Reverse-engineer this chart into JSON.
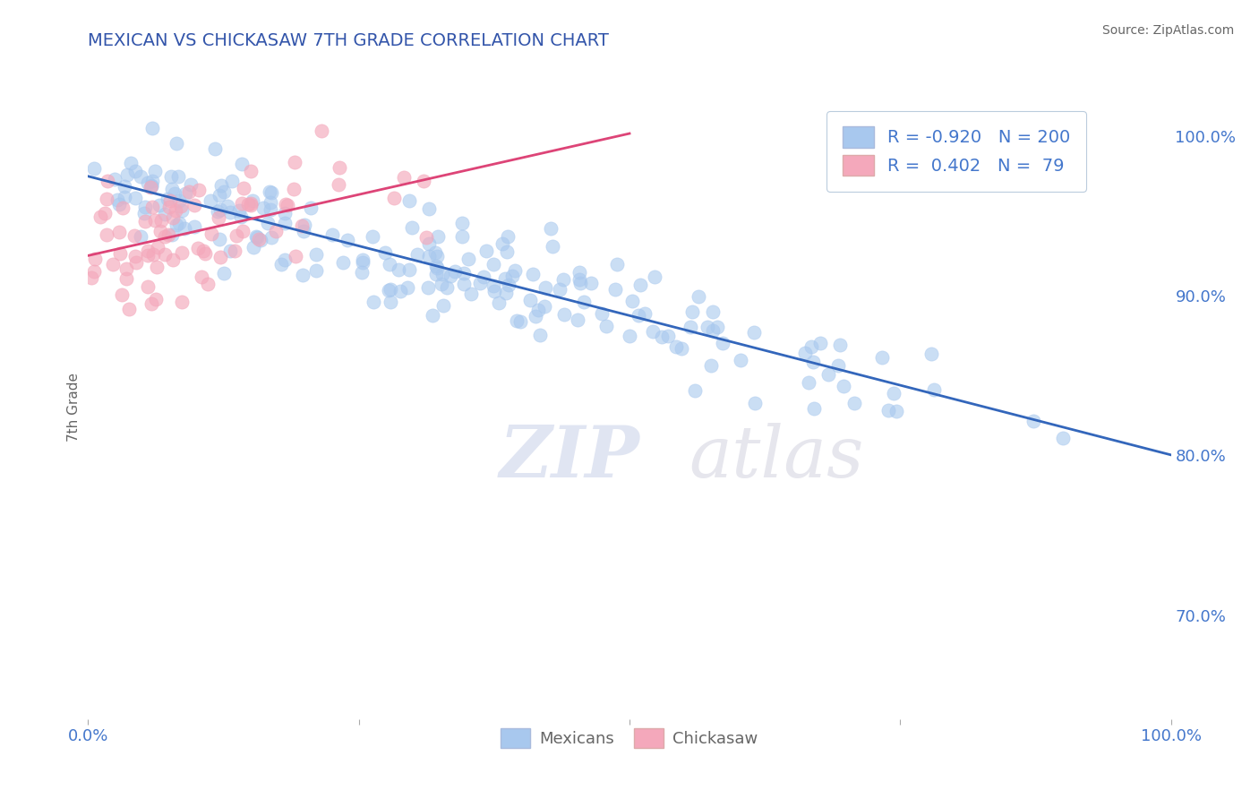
{
  "title": "MEXICAN VS CHICKASAW 7TH GRADE CORRELATION CHART",
  "source_text": "Source: ZipAtlas.com",
  "ylabel": "7th Grade",
  "xlim": [
    0.0,
    1.0
  ],
  "ylim": [
    0.635,
    1.025
  ],
  "blue_R": -0.92,
  "blue_N": 200,
  "pink_R": 0.402,
  "pink_N": 79,
  "blue_color": "#A8C8EE",
  "pink_color": "#F4A8BB",
  "blue_line_color": "#3366BB",
  "pink_line_color": "#DD4477",
  "right_yticks": [
    0.7,
    0.8,
    0.9,
    1.0
  ],
  "right_yticklabels": [
    "70.0%",
    "80.0%",
    "90.0%",
    "100.0%"
  ],
  "watermark_zip": "ZIP",
  "watermark_atlas": "atlas",
  "legend_label_blue": "Mexicans",
  "legend_label_pink": "Chickasaw",
  "grid_color": "#CCCCDD",
  "background_color": "#FFFFFF",
  "title_color": "#3355AA",
  "axis_label_color": "#666666",
  "tick_label_color": "#4477CC",
  "blue_scatter_seed": 12,
  "pink_scatter_seed": 99
}
